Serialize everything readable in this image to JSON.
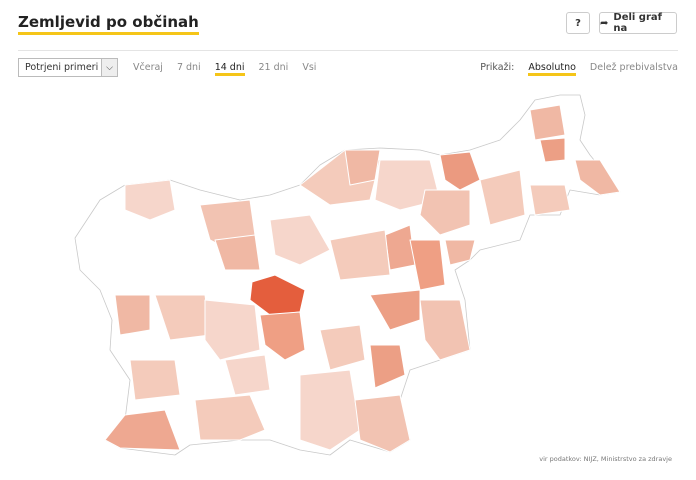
{
  "header": {
    "title": "Zemljevid po občinah",
    "help_button": "?",
    "share_button": "Deli graf na"
  },
  "controls": {
    "dropdown": "Potrjeni primeri",
    "periods": [
      {
        "label": "Včeraj",
        "active": false
      },
      {
        "label": "7 dni",
        "active": false
      },
      {
        "label": "14 dni",
        "active": true
      },
      {
        "label": "21 dni",
        "active": false
      },
      {
        "label": "Vsi",
        "active": false
      }
    ],
    "show_label": "Prikaži:",
    "modes": [
      {
        "label": "Absolutno",
        "active": true
      },
      {
        "label": "Delež prebivalstva",
        "active": false
      }
    ]
  },
  "source": "vir podatkov: NIJZ, Ministrstvo za zdravje"
}
